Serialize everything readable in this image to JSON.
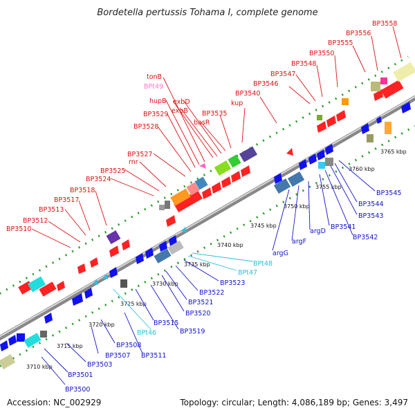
{
  "title": "Bordetella pertussis Tohama I, complete genome",
  "footer": {
    "accession": "Accession: NC_002929",
    "summary": "Topology: circular; Length: 4,086,189 bp; Genes: 3,497"
  },
  "colors": {
    "forward_label": "#dd1111",
    "reverse_label": "#1111cc",
    "trna_forward": "#ff66cc",
    "trna_reverse": "#33bbdd",
    "axis": "#aaaaaa",
    "tick": "#229922"
  },
  "kbp_marks": [
    "3710 kbp",
    "3715 kbp",
    "3720 kbp",
    "3725 kbp",
    "3730 kbp",
    "3735 kbp",
    "3740 kbp",
    "3745 kbp",
    "3750 kbp",
    "3755 kbp",
    "3760 kbp",
    "3765 kbp"
  ],
  "labels_forward": [
    "BP3510",
    "BP3512",
    "BP3513",
    "BP3517",
    "BP3518",
    "BP3524",
    "BP3525",
    "rnr",
    "BP3527",
    "BP3528",
    "BP3529",
    "hupB",
    "BPt49",
    "tonB",
    "exbB",
    "exbD",
    "basR",
    "BP3535",
    "kup",
    "BP3540",
    "BP3546",
    "BP3547",
    "BP3548",
    "BP3550",
    "BP3555",
    "BP3556",
    "BP3558"
  ],
  "labels_reverse": [
    "BP3500",
    "BP3501",
    "BP3503",
    "BP3507",
    "BP3508",
    "BP3511",
    "BPt46",
    "BP3515",
    "BP3519",
    "BP3520",
    "BP3521",
    "BP3522",
    "BP3523",
    "BPt47",
    "BPt48",
    "argG",
    "argF",
    "argD",
    "BP3541",
    "BP3542",
    "BP3543",
    "BP3544",
    "BP3545"
  ]
}
